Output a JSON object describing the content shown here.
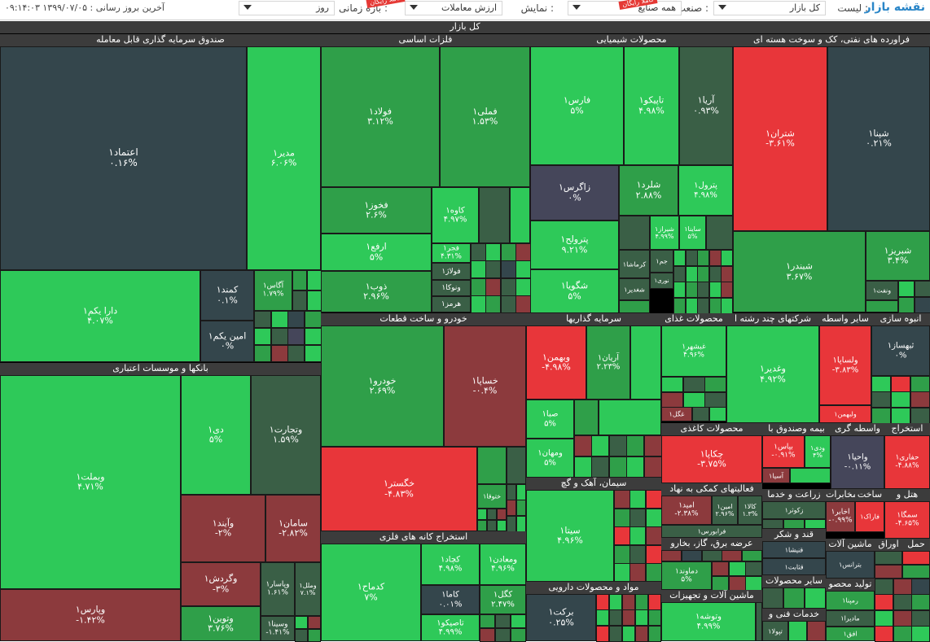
{
  "toolbar": {
    "brand": "نقشه بازار",
    "list_label": "لیست :",
    "list_value": "کل بازار",
    "industry_label": "صنعت :",
    "industry_value": "همه صنایع",
    "display_label": "نمایش :",
    "display_value": "ارزش معاملات",
    "period_label": "بازه زمانی :",
    "period_value": "روز",
    "badge_1": "کاملاً رایگان",
    "badge_2": "کاملاً رایگان",
    "last_update": "آخرین بروز رسانی : ۱۳۹۹/۰۷/۰۵ ۰۹:۱۴:۰۳"
  },
  "market_title": "کل بازار",
  "colors": {
    "dark_neutral": "#34464c",
    "strong_green": "#2ec959",
    "mid_green": "#2f9f49",
    "dark_green": "#3a5f46",
    "strong_red": "#e8363a",
    "dark_red": "#8c3a3d",
    "slate": "#45465a",
    "header": "#3c3c3c"
  },
  "sectors": [
    {
      "title": "صندوق سرمایه گذاری قابل معامله"
    },
    {
      "title": "فلزات اساسی"
    },
    {
      "title": "محصولات شیمیایی"
    },
    {
      "title": "فراورده های نفتی، کک و سوخت هسته ای"
    },
    {
      "title": "بانکها و موسسات اعتباری"
    },
    {
      "title": "خودرو و ساخت قطعات"
    },
    {
      "title": "سرمایه گذاریها"
    },
    {
      "title": "محصولات غذای"
    },
    {
      "title": "شرکتهای چند رشته ا"
    },
    {
      "title": "سایر واسطه"
    },
    {
      "title": "انبوه سازی"
    },
    {
      "title": "استخراج کانه های فلزی"
    },
    {
      "title": "سیمان، آهک و گچ"
    },
    {
      "title": "محصولات کاغذی"
    },
    {
      "title": "بیمه وصندوق با"
    },
    {
      "title": "واسطه گری"
    },
    {
      "title": "استخراج"
    },
    {
      "title": "فعالیتهای کمکی به نهاد"
    },
    {
      "title": "زراعت و خدما"
    },
    {
      "title": "ساخت"
    },
    {
      "title": "هتل و"
    },
    {
      "title": "قند و شکر"
    },
    {
      "title": "عرضه برق، گاز، بخارو"
    },
    {
      "title": "ماشین آلات"
    },
    {
      "title": "حمل"
    },
    {
      "title": "اوراق"
    },
    {
      "title": "مواد و محصولات دارویی"
    },
    {
      "title": "ماشین آلات و تجهیزات"
    },
    {
      "title": "سایر محصولات"
    },
    {
      "title": "خدمات فنی و"
    },
    {
      "title": "تولید محصو"
    },
    {
      "title": "مخابرات"
    }
  ],
  "tiles": [
    {
      "symbol": "اعتماد۱",
      "change": "۰.۱۶%"
    },
    {
      "symbol": "مدیر۱",
      "change": "۶.۰۶%"
    },
    {
      "symbol": "دارا یکم۱",
      "change": "۴.۰۷%"
    },
    {
      "symbol": "کمند۱",
      "change": "۰.۱%"
    },
    {
      "symbol": "امین یکم۱",
      "change": "۰%"
    },
    {
      "symbol": "آگاس۱",
      "change": "۱.۷۹%"
    },
    {
      "symbol": "فولاد۱",
      "change": "۳.۱۲%"
    },
    {
      "symbol": "فملی۱",
      "change": "۱.۵۳%"
    },
    {
      "symbol": "فخوز۱",
      "change": "۲.۶%"
    },
    {
      "symbol": "ارفع۱",
      "change": "۵%"
    },
    {
      "symbol": "ذوب۱",
      "change": "۲.۹۶%"
    },
    {
      "symbol": "کاوه۱",
      "change": "۴.۹۷%"
    },
    {
      "symbol": "فجر۱",
      "change": "۴.۳۱%"
    },
    {
      "symbol": "فولاژ۱",
      "change": ""
    },
    {
      "symbol": "ونوکا۱",
      "change": ""
    },
    {
      "symbol": "هرمز۱",
      "change": ""
    },
    {
      "symbol": "فارس۱",
      "change": "۵%"
    },
    {
      "symbol": "تاپیکو۱",
      "change": "۴.۹۸%"
    },
    {
      "symbol": "آریا۱",
      "change": "۰.۹۳%"
    },
    {
      "symbol": "زاگرس۱",
      "change": "۰%"
    },
    {
      "symbol": "شلرد۱",
      "change": "۲.۸۸%"
    },
    {
      "symbol": "پترول۱",
      "change": "۴.۹۸%"
    },
    {
      "symbol": "پترولح۱",
      "change": "۹.۲۱%"
    },
    {
      "symbol": "شگویا۱",
      "change": "۵%"
    },
    {
      "symbol": "شیراز۱",
      "change": "۴.۹۹%"
    },
    {
      "symbol": "ساینا۱",
      "change": "۵%"
    },
    {
      "symbol": "کرماشا۱",
      "change": ""
    },
    {
      "symbol": "جم۱",
      "change": ""
    },
    {
      "symbol": "نوری۱",
      "change": ""
    },
    {
      "symbol": "شغدیر۱",
      "change": ""
    },
    {
      "symbol": "شتران۱",
      "change": "-۳.۶۱%"
    },
    {
      "symbol": "شپنا۱",
      "change": "۰.۲۱%"
    },
    {
      "symbol": "شبندر۱",
      "change": "۳.۶۷%"
    },
    {
      "symbol": "شبریز۱",
      "change": "۳.۴%"
    },
    {
      "symbol": "ونفت۱",
      "change": ""
    },
    {
      "symbol": "وبملت۱",
      "change": "۴.۷۱%"
    },
    {
      "symbol": "دی۱",
      "change": "۵%"
    },
    {
      "symbol": "وتجارت۱",
      "change": "۱.۵۹%"
    },
    {
      "symbol": "وآیند۱",
      "change": "-۲%"
    },
    {
      "symbol": "سامان۱",
      "change": "-۲.۸۲%"
    },
    {
      "symbol": "وگردش۱",
      "change": "-۳%"
    },
    {
      "symbol": "وتوین۱",
      "change": "۳.۷۶%"
    },
    {
      "symbol": "وپاسار۱",
      "change": "۱.۶۱%"
    },
    {
      "symbol": "وسینا۱",
      "change": "-۱.۴۱%"
    },
    {
      "symbol": "وملل۱",
      "change": "۷.۱%"
    },
    {
      "symbol": "وپارس۱",
      "change": "-۱.۴۲%"
    },
    {
      "symbol": "خودرو۱",
      "change": "۲.۶۹%"
    },
    {
      "symbol": "خساپا۱",
      "change": "-۰.۴%"
    },
    {
      "symbol": "خگستر۱",
      "change": "-۴.۸۳%"
    },
    {
      "symbol": "ختوقا۱",
      "change": ""
    },
    {
      "symbol": "وبهمن۱",
      "change": "-۴.۹۸%"
    },
    {
      "symbol": "آریان۱",
      "change": "۲.۲۳%"
    },
    {
      "symbol": "صبا۱",
      "change": "۵%"
    },
    {
      "symbol": "ومهان۱",
      "change": "۵%"
    },
    {
      "symbol": "ونیکی۱",
      "change": ""
    },
    {
      "symbol": "غبشهر۱",
      "change": "۴.۹۶%"
    },
    {
      "symbol": "غگل۱",
      "change": ""
    },
    {
      "symbol": "وغدیر۱",
      "change": "۴.۹۲%"
    },
    {
      "symbol": "ولساپا۱",
      "change": "-۳.۸۳%"
    },
    {
      "symbol": "ولبهمن۱",
      "change": ""
    },
    {
      "symbol": "ثبهساز۱",
      "change": "۰%"
    },
    {
      "symbol": "کدماح۱",
      "change": "۷%"
    },
    {
      "symbol": "کچاد۱",
      "change": "۴.۹۸%"
    },
    {
      "symbol": "ومعادن۱",
      "change": "۴.۹۶%"
    },
    {
      "symbol": "کاما۱",
      "change": "۰.۰۱%"
    },
    {
      "symbol": "کگل۱",
      "change": "۲.۴۷%"
    },
    {
      "symbol": "تاصیکو۱",
      "change": "۴.۹۹%"
    },
    {
      "symbol": "سیتا۱",
      "change": "۴.۹۶%"
    },
    {
      "symbol": "برکت۱",
      "change": "۰.۲۵%"
    },
    {
      "symbol": "چکاپا۱",
      "change": "-۳.۷۵%"
    },
    {
      "symbol": "بپاس۱",
      "change": "-۰.۹۱%"
    },
    {
      "symbol": "آسیا۱",
      "change": ""
    },
    {
      "symbol": "ودی۱",
      "change": "۴%"
    },
    {
      "symbol": "واحیا۱",
      "change": "-۰.۱۱%"
    },
    {
      "symbol": "حفاری۱",
      "change": "-۴.۸۸%"
    },
    {
      "symbol": "امید۱",
      "change": "-۲.۳۸%"
    },
    {
      "symbol": "امین۱",
      "change": "۲.۹۶%"
    },
    {
      "symbol": "کالا۱",
      "change": "۱.۳%"
    },
    {
      "symbol": "فرابورس۱",
      "change": ""
    },
    {
      "symbol": "زکوثر۱",
      "change": ""
    },
    {
      "symbol": "اخابر۱",
      "change": "-۰.۹۹%"
    },
    {
      "symbol": "فاراک۱",
      "change": ""
    },
    {
      "symbol": "سمگا۱",
      "change": "-۴.۶۵%"
    },
    {
      "symbol": "قنیشا۱",
      "change": ""
    },
    {
      "symbol": "قثابت۱",
      "change": ""
    },
    {
      "symbol": "دماوند۱",
      "change": "۵%"
    },
    {
      "symbol": "بترانس۱",
      "change": ""
    },
    {
      "symbol": "وتوشه۱",
      "change": "۴.۹۹%"
    },
    {
      "symbol": "تپولا۱",
      "change": ""
    },
    {
      "symbol": "رمپنا۱",
      "change": ""
    },
    {
      "symbol": "مادیرا۱",
      "change": ""
    },
    {
      "symbol": "افق۱",
      "change": ""
    }
  ]
}
